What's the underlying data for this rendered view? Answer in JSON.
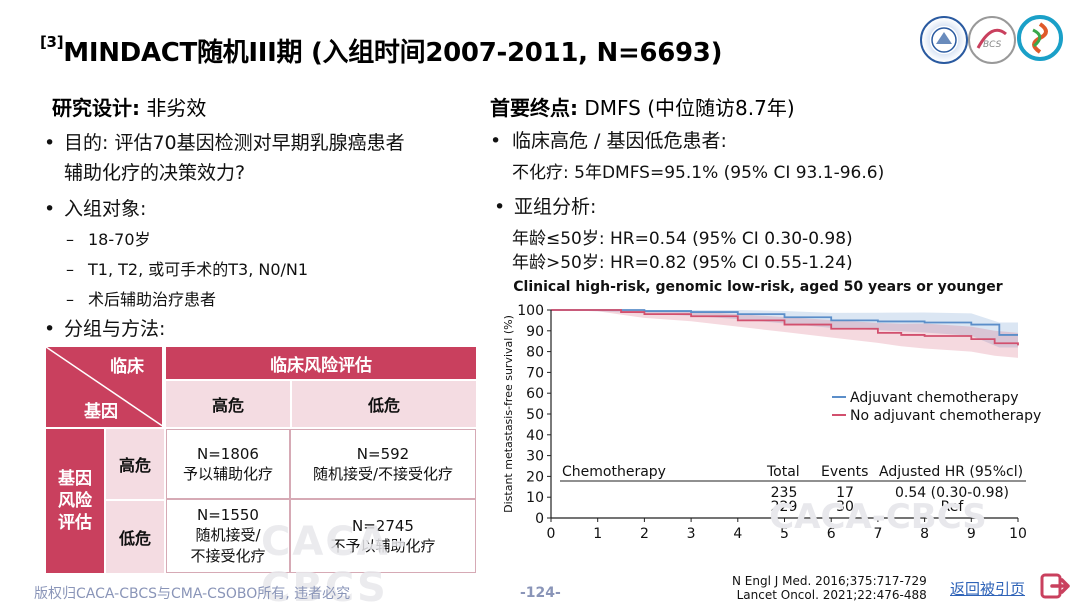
{
  "slide": {
    "title_sup": "[3]",
    "title": "MINDACT随机III期 (入组时间2007-2011, N=6693)"
  },
  "left": {
    "design_label": "研究设计:",
    "design_value": " 非劣效",
    "purpose_line1": "目的: 评估70基因检测对早期乳腺癌患者",
    "purpose_line2": "辅助化疗的决策效力?",
    "enroll_label": "入组对象:",
    "enroll_items": [
      "18-70岁",
      "T1, T2, 或可手术的T3, N0/N1",
      "术后辅助治疗患者"
    ],
    "group_label": "分组与方法:"
  },
  "table": {
    "corner_top": "临床",
    "corner_bottom": "基因",
    "header_main": "临床风险评估",
    "col_high": "高危",
    "col_low": "低危",
    "row_group": "基因\n风险\n评估",
    "row_high": "高危",
    "row_low": "低危",
    "cells": {
      "hh_n": "N=1806",
      "hh_t": "予以辅助化疗",
      "hl_n": "N=592",
      "hl_t": "随机接受/不接受化疗",
      "lh_n": "N=1550",
      "lh_t1": "随机接受/",
      "lh_t2": "不接受化疗",
      "ll_n": "N=2745",
      "ll_t": "不予以辅助化疗"
    }
  },
  "right": {
    "endpoint_label": "首要终点:",
    "endpoint_value": " DMFS (中位随访8.7年)",
    "b1": "临床高危 / 基因低危患者:",
    "b1_detail": "不化疗: 5年DMFS=95.1% (95% CI 93.1-96.6)",
    "b2": "亚组分析:",
    "b2_line1": "年龄≤50岁: HR=0.54 (95% CI 0.30-0.98)",
    "b2_line2": "年龄>50岁: HR=0.82 (95% CI 0.55-1.24)"
  },
  "chart_data": {
    "type": "line",
    "title": "Clinical high-risk, genomic low-risk, aged 50 years or younger",
    "ylabel": "Distant metastasis-free survival (%)",
    "xlim": [
      0,
      10
    ],
    "ylim": [
      0,
      100
    ],
    "xticks": [
      0,
      1,
      2,
      3,
      4,
      5,
      6,
      7,
      8,
      9,
      10
    ],
    "yticks": [
      0,
      10,
      20,
      30,
      40,
      50,
      60,
      70,
      80,
      90,
      100
    ],
    "legend_position": "right",
    "series": [
      {
        "name": "Adjuvant chemotherapy",
        "color": "#5b8ec9",
        "x": [
          0,
          1,
          2,
          3,
          4,
          5,
          6,
          7,
          8,
          9,
          9.6,
          10
        ],
        "y": [
          100,
          100,
          99.5,
          99,
          98,
          96.5,
          95,
          94.5,
          94,
          93,
          88,
          88
        ]
      },
      {
        "name": "No adjuvant chemotherapy",
        "color": "#d2506e",
        "x": [
          0,
          1,
          1.5,
          2,
          3,
          4,
          5,
          6,
          7,
          7.5,
          8,
          9,
          9.5,
          10
        ],
        "y": [
          100,
          100,
          99,
          98,
          97,
          95,
          93,
          91,
          89,
          88,
          87.5,
          86,
          84,
          83
        ]
      }
    ],
    "table_header": [
      "Chemotherapy",
      "Total",
      "Events",
      "Adjusted HR (95%cl)"
    ],
    "table_rows": [
      {
        "total": "235",
        "events": "17",
        "hr": "0.54 (0.30-0.98)"
      },
      {
        "total": "229",
        "events": "30",
        "hr": "Ref"
      }
    ],
    "watermark": "CACA-CBCS"
  },
  "footer": {
    "copyright": "版权归CACA-CBCS与CMA-CSOBO所有, 违者必究",
    "page": "-124-",
    "ref1": "N Engl J Med. 2016;375:717-729",
    "ref2": "Lancet Oncol. 2021;22:476-488",
    "back": "返回被引页"
  },
  "colors": {
    "pink_dark": "#c9405e",
    "pink_light": "#f4dce2",
    "blue": "#5b8ec9",
    "red": "#d2506e"
  },
  "icons": {
    "exit": "exit-arrow-icon",
    "logo1": "association-seal-logo",
    "logo2": "bcs-logo",
    "logo3": "spiral-logo"
  },
  "table_watermark": "CACA-CBCS"
}
